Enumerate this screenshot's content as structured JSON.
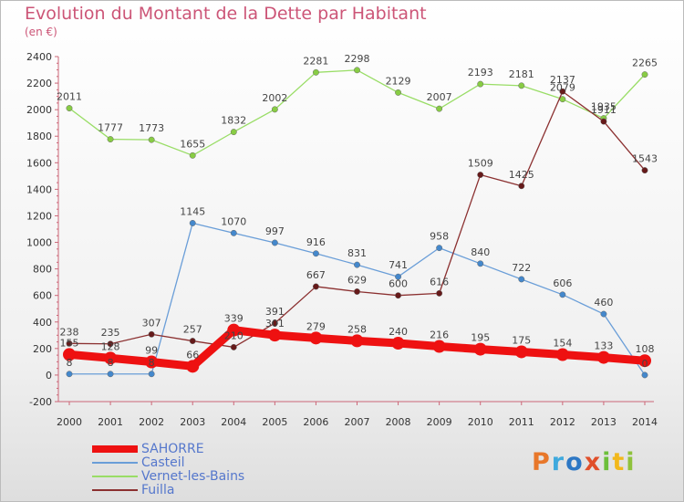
{
  "title": "Evolution du Montant de la Dette par Habitant",
  "subtitle": "(en €)",
  "logo": {
    "text": "Proxiti",
    "letters": [
      "P",
      "r",
      "o",
      "x",
      "i",
      "t",
      "i"
    ],
    "colors": [
      "#e8772a",
      "#3fa9dd",
      "#2d77c4",
      "#e04f2a",
      "#6cbf3a",
      "#f2b81c",
      "#8fc23c"
    ]
  },
  "chart_data": {
    "type": "line",
    "x": [
      "2000",
      "2001",
      "2002",
      "2003",
      "2004",
      "2005",
      "2006",
      "2007",
      "2008",
      "2009",
      "2010",
      "2011",
      "2012",
      "2013",
      "2014"
    ],
    "ylim": [
      -200,
      2400
    ],
    "yticks": [
      "-200",
      "0",
      "200",
      "400",
      "600",
      "800",
      "1000",
      "1200",
      "1400",
      "1600",
      "1800",
      "2000",
      "2200",
      "2400"
    ],
    "grid": false,
    "legend_position": "bottom-left",
    "series": [
      {
        "name": "SAHORRE",
        "color": "#ee1111",
        "marker": "#ee1111",
        "values": [
          155,
          128,
          99,
          66,
          339,
          301,
          279,
          258,
          240,
          216,
          195,
          175,
          154,
          133,
          108
        ],
        "labels": [
          "155",
          "128",
          "99",
          "66",
          "339",
          "301",
          "279",
          "258",
          "240",
          "216",
          "195",
          "175",
          "154",
          "133",
          "108"
        ]
      },
      {
        "name": "Casteil",
        "color": "#6a9ed8",
        "marker": "#4488cc",
        "values": [
          8,
          8,
          8,
          1145,
          1070,
          997,
          916,
          831,
          741,
          958,
          840,
          722,
          606,
          460,
          0
        ],
        "labels": [
          "8",
          "8",
          "8",
          "1145",
          "1070",
          "997",
          "916",
          "831",
          "741",
          "958",
          "840",
          "722",
          "606",
          "460",
          "0"
        ]
      },
      {
        "name": "Vernet-les-Bains",
        "color": "#99dd66",
        "marker": "#88cc44",
        "values": [
          2011,
          1777,
          1773,
          1655,
          1832,
          2002,
          2281,
          2298,
          2129,
          2007,
          2193,
          2181,
          2079,
          1935,
          2265
        ],
        "labels": [
          "2011",
          "1777",
          "1773",
          "1655",
          "1832",
          "2002",
          "2281",
          "2298",
          "2129",
          "2007",
          "2193",
          "2181",
          "2079",
          "1935",
          "2265"
        ]
      },
      {
        "name": "Fuilla",
        "color": "#8b3030",
        "marker": "#661a1a",
        "values": [
          238,
          235,
          307,
          257,
          210,
          391,
          667,
          629,
          600,
          616,
          1509,
          1425,
          2137,
          1911,
          1543
        ],
        "labels": [
          "238",
          "235",
          "307",
          "257",
          "210",
          "391",
          "667",
          "629",
          "600",
          "616",
          "1509",
          "1425",
          "2137",
          "1911",
          "1543"
        ]
      }
    ]
  }
}
